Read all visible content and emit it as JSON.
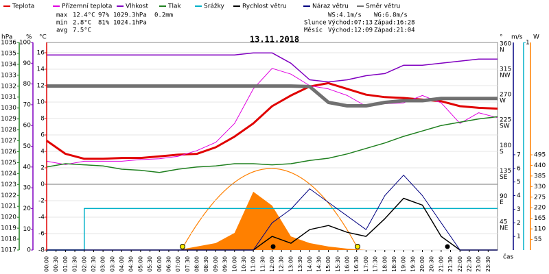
{
  "chart_data": {
    "type": "line",
    "title": "13.11.2018",
    "stats": {
      "rows": [
        [
          "max",
          "12.4°C",
          "97%",
          "1029.3hPa",
          "0.2mm"
        ],
        [
          "min",
          "2.8°C",
          "81%",
          "1024.1hPa"
        ],
        [
          "avg",
          "7.5°C"
        ]
      ],
      "colors": [
        "#000000",
        "#e00000",
        "#8000c0",
        "#2050c0",
        "#00b0c8"
      ]
    },
    "info": {
      "rows": [
        [
          "WS:4.1m/s",
          "WG:6.8m/s"
        ],
        [
          "Slunce",
          "Východ:07:13",
          "Západ:16:28"
        ],
        [
          "Měsíc",
          "Východ:12:09",
          "Západ:21:04"
        ]
      ]
    },
    "x_label": "čas",
    "xlim": [
      0,
      24
    ],
    "xticks": [
      {
        "value": 0,
        "label": "00:00"
      },
      {
        "value": 0.5,
        "label": "00:30"
      },
      {
        "value": 1,
        "label": "01:00"
      },
      {
        "value": 1.5,
        "label": "01:30"
      },
      {
        "value": 2,
        "label": "02:00"
      },
      {
        "value": 2.5,
        "label": "02:30"
      },
      {
        "value": 3,
        "label": "03:00"
      },
      {
        "value": 3.5,
        "label": "03:30"
      },
      {
        "value": 4,
        "label": "04:00"
      },
      {
        "value": 4.5,
        "label": "04:30"
      },
      {
        "value": 5,
        "label": "05:00"
      },
      {
        "value": 5.5,
        "label": "05:30"
      },
      {
        "value": 6,
        "label": "06:00"
      },
      {
        "value": 6.5,
        "label": "06:30"
      },
      {
        "value": 7,
        "label": "07:00"
      },
      {
        "value": 7.5,
        "label": "07:30"
      },
      {
        "value": 8,
        "label": "08:00"
      },
      {
        "value": 8.5,
        "label": "08:30"
      },
      {
        "value": 9,
        "label": "09:00"
      },
      {
        "value": 9.5,
        "label": "09:30"
      },
      {
        "value": 10,
        "label": "10:00"
      },
      {
        "value": 10.5,
        "label": "10:30"
      },
      {
        "value": 11,
        "label": "11:00"
      },
      {
        "value": 11.5,
        "label": "11:30"
      },
      {
        "value": 12,
        "label": "12:00"
      },
      {
        "value": 12.5,
        "label": "12:30"
      },
      {
        "value": 13,
        "label": "13:00"
      },
      {
        "value": 13.5,
        "label": "13:30"
      },
      {
        "value": 14,
        "label": "14:00"
      },
      {
        "value": 14.5,
        "label": "14:30"
      },
      {
        "value": 15,
        "label": "15:00"
      },
      {
        "value": 15.5,
        "label": "15:30"
      },
      {
        "value": 16,
        "label": "16:00"
      },
      {
        "value": 16.5,
        "label": "16:30"
      },
      {
        "value": 17,
        "label": "17:00"
      },
      {
        "value": 17.5,
        "label": "17:30"
      },
      {
        "value": 18,
        "label": "18:00"
      },
      {
        "value": 18.5,
        "label": "18:30"
      },
      {
        "value": 19,
        "label": "19:00"
      },
      {
        "value": 19.5,
        "label": "19:30"
      },
      {
        "value": 20,
        "label": "20:00"
      },
      {
        "value": 20.5,
        "label": "20:30"
      },
      {
        "value": 21,
        "label": "21:00"
      },
      {
        "value": 21.5,
        "label": "21:30"
      },
      {
        "value": 22,
        "label": "22:00"
      },
      {
        "value": 22.5,
        "label": "22:30"
      },
      {
        "value": 23,
        "label": "23:00"
      },
      {
        "value": 23.5,
        "label": "23:30"
      }
    ],
    "y_axes": [
      {
        "title": "hPa",
        "color": "#208020",
        "lim": [
          1017,
          1036
        ],
        "ticks": [
          1017,
          1018,
          1019,
          1020,
          1021,
          1022,
          1023,
          1024,
          1025,
          1026,
          1027,
          1028,
          1029,
          1030,
          1031,
          1032,
          1033,
          1034,
          1035,
          1036
        ]
      },
      {
        "title": "%",
        "color": "#8000c0",
        "lim": [
          0,
          100
        ],
        "ticks": [
          0,
          10,
          20,
          30,
          40,
          50,
          60,
          70,
          80,
          90,
          100
        ]
      },
      {
        "title": "°C",
        "color": "#e00000",
        "lim": [
          -8,
          17.25
        ],
        "ticks": [
          -8,
          -6,
          -4,
          -2,
          0,
          2,
          4,
          6,
          8,
          10,
          12,
          14,
          16
        ],
        "grid": true
      },
      {
        "title": "°",
        "color": "#000000",
        "lim": [
          0,
          367
        ],
        "ticks": [
          45,
          90,
          135,
          180,
          225,
          270,
          315,
          360
        ],
        "compass": [
          "NE",
          "E",
          "SE",
          "S",
          "SW",
          "W",
          "NW",
          "N"
        ]
      },
      {
        "title": "m/s",
        "color": "#000080",
        "lim": [
          0,
          15.25
        ],
        "ticks": [
          1,
          2,
          3,
          4,
          5,
          6,
          7
        ]
      },
      {
        "color": "#00b0c8",
        "lim": [
          0,
          1
        ],
        "ticks": [
          1
        ]
      },
      {
        "title": "W",
        "color": "#ff8000",
        "lim": [
          0,
          1079
        ],
        "ticks": [
          55,
          110,
          165,
          220,
          275,
          330,
          385,
          440,
          495
        ]
      }
    ],
    "x": [
      0,
      1,
      2,
      3,
      4,
      5,
      6,
      7,
      8,
      9,
      10,
      11,
      12,
      13,
      14,
      15,
      16,
      17,
      18,
      19,
      20,
      21,
      22,
      23,
      24
    ],
    "series": [
      {
        "name": "Teplota",
        "color": "#e00000",
        "axis": 2,
        "style": "thick",
        "values": [
          5.3,
          3.7,
          3.1,
          3.1,
          3.2,
          3.2,
          3.4,
          3.6,
          3.7,
          4.5,
          5.8,
          7.4,
          9.5,
          10.8,
          11.9,
          12.3,
          11.6,
          10.9,
          10.6,
          10.5,
          10.3,
          10.1,
          9.5,
          9.3,
          9.2
        ]
      },
      {
        "name": "Přízemní teplota",
        "color": "#e000e0",
        "axis": 2,
        "style": "thin",
        "values": [
          2.8,
          2.4,
          2.8,
          2.8,
          2.8,
          3.0,
          3.1,
          3.4,
          4.1,
          5.1,
          7.4,
          11.6,
          14.1,
          13.4,
          12.0,
          11.6,
          10.8,
          9.5,
          9.8,
          9.9,
          10.8,
          9.9,
          7.4,
          8.7,
          8.1
        ]
      },
      {
        "name": "Vlhkost",
        "color": "#8000c0",
        "axis": 1,
        "style": "medium",
        "values": [
          94,
          94,
          94,
          94,
          94,
          94,
          94,
          94,
          94,
          94,
          94,
          95,
          95,
          90,
          82,
          81,
          82,
          84,
          85,
          89,
          89,
          90,
          91,
          92,
          92
        ]
      },
      {
        "name": "Tlak",
        "color": "#208020",
        "axis": 0,
        "style": "medium",
        "values": [
          1024.6,
          1024.9,
          1024.8,
          1024.7,
          1024.4,
          1024.3,
          1024.1,
          1024.4,
          1024.6,
          1024.7,
          1024.9,
          1024.9,
          1024.8,
          1024.9,
          1025.2,
          1025.4,
          1025.8,
          1026.3,
          1026.8,
          1027.4,
          1027.9,
          1028.4,
          1028.7,
          1029.0,
          1029.2
        ]
      },
      {
        "name": "Srážky",
        "color": "#00b0c8",
        "axis": 5,
        "style": "step",
        "values": [
          0,
          0,
          0.2,
          0.2,
          0.2,
          0.2,
          0.2,
          0.2,
          0.2,
          0.2,
          0.2,
          0.2,
          0.2,
          0.2,
          0.2,
          0.2,
          0.2,
          0.2,
          0.2,
          0.2,
          0.2,
          0.2,
          0.2,
          0.2,
          0.2
        ]
      },
      {
        "name": "Rychlost větru",
        "color": "#000000",
        "axis": 4,
        "style": "medium",
        "values": [
          0,
          0,
          0,
          0,
          0,
          0,
          0,
          0,
          0,
          0,
          0,
          0,
          1.0,
          0.5,
          1.5,
          1.8,
          1.3,
          1.0,
          2.3,
          3.8,
          3.3,
          1.0,
          0,
          0,
          0
        ]
      },
      {
        "name": "Náraz větru",
        "color": "#000080",
        "axis": 4,
        "style": "thin",
        "values": [
          0,
          0,
          0,
          0,
          0,
          0,
          0,
          0,
          0,
          0,
          0,
          0,
          2.0,
          3.0,
          4.5,
          3.5,
          2.5,
          1.5,
          4.0,
          5.5,
          4.0,
          2.0,
          0,
          0,
          0
        ]
      },
      {
        "name": "Směr větru",
        "color": "#707070",
        "axis": 3,
        "style": "heavy",
        "values": [
          290,
          290,
          290,
          290,
          290,
          290,
          290,
          290,
          290,
          290,
          290,
          290,
          290,
          290,
          289,
          261,
          255,
          255,
          261,
          264,
          264,
          268,
          268,
          268,
          268
        ]
      },
      {
        "color": "#ff8000",
        "axis": 6,
        "style": "area",
        "values": [
          0,
          0,
          0,
          0,
          0,
          0,
          0,
          0,
          18,
          36,
          89,
          303,
          231,
          71,
          36,
          18,
          7,
          0,
          0,
          0,
          0,
          0,
          0,
          0,
          0
        ]
      }
    ]
  }
}
